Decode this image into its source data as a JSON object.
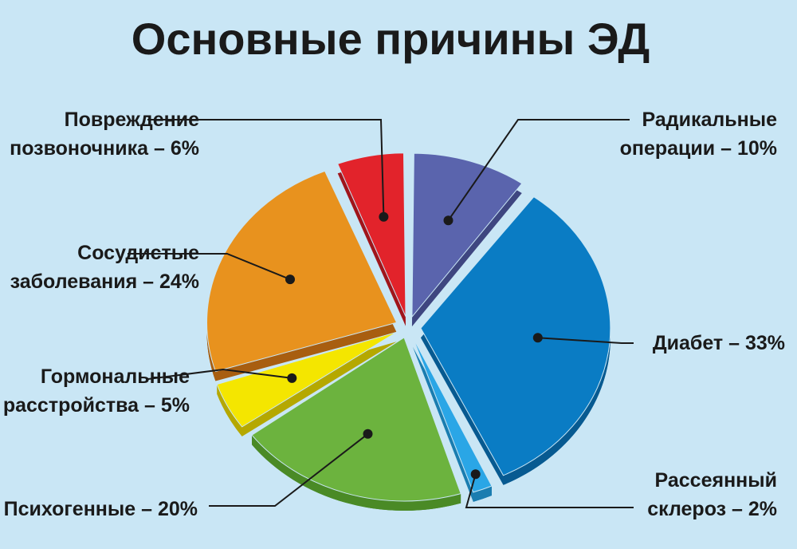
{
  "chart_data": {
    "type": "pie",
    "title": "Основные причины ЭД",
    "slices": [
      {
        "line1": "Радикальные",
        "line2": "операции – 10%",
        "value": 10,
        "color": "#5a64ad",
        "side": "#3e4680"
      },
      {
        "line1": "Диабет – 33%",
        "line2": "",
        "value": 33,
        "color": "#0a7cc4",
        "side": "#075a91"
      },
      {
        "line1": "Рассеянный",
        "line2": "склероз – 2%",
        "value": 2,
        "color": "#2aa6e6",
        "side": "#1a7db0"
      },
      {
        "line1": "Психогенные – 20%",
        "line2": "",
        "value": 20,
        "color": "#6cb33e",
        "side": "#4a8a26"
      },
      {
        "line1": "Гормональные",
        "line2": "расстройства – 5%",
        "value": 5,
        "color": "#f4e600",
        "side": "#b5a800"
      },
      {
        "line1": "Сосудистые",
        "line2": "заболевания – 24%",
        "value": 24,
        "color": "#e8921e",
        "side": "#a85e10"
      },
      {
        "line1": "Повреждение",
        "line2": "позвоночника – 6%",
        "value": 6,
        "color": "#e2232b",
        "side": "#a0151b"
      }
    ]
  }
}
